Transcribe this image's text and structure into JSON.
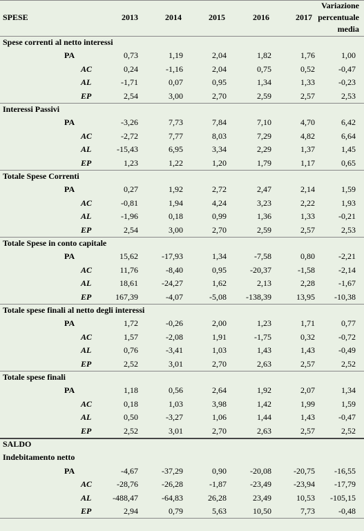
{
  "header": {
    "title": "SPESE",
    "years": [
      "2013",
      "2014",
      "2015",
      "2016",
      "2017"
    ],
    "variation": "Variazione percentuale media"
  },
  "sections": [
    {
      "title": "Spese correnti al netto interessi",
      "rows": [
        {
          "label": "PA",
          "values": [
            "0,73",
            "1,19",
            "2,04",
            "1,82",
            "1,76",
            "1,00"
          ]
        },
        {
          "label": "AC",
          "values": [
            "0,24",
            "-1,16",
            "2,04",
            "0,75",
            "0,52",
            "-0,47"
          ]
        },
        {
          "label": "AL",
          "values": [
            "-1,71",
            "0,07",
            "0,95",
            "1,34",
            "1,33",
            "-0,23"
          ]
        },
        {
          "label": "EP",
          "values": [
            "2,54",
            "3,00",
            "2,70",
            "2,59",
            "2,57",
            "2,53"
          ]
        }
      ]
    },
    {
      "title": "Interessi Passivi",
      "rows": [
        {
          "label": "PA",
          "values": [
            "-3,26",
            "7,73",
            "7,84",
            "7,10",
            "4,70",
            "6,42"
          ]
        },
        {
          "label": "AC",
          "values": [
            "-2,72",
            "7,77",
            "8,03",
            "7,29",
            "4,82",
            "6,64"
          ]
        },
        {
          "label": "AL",
          "values": [
            "-15,43",
            "6,95",
            "3,34",
            "2,29",
            "1,37",
            "1,45"
          ]
        },
        {
          "label": "EP",
          "values": [
            "1,23",
            "1,22",
            "1,20",
            "1,79",
            "1,17",
            "0,65"
          ]
        }
      ]
    },
    {
      "title": "Totale Spese Correnti",
      "rows": [
        {
          "label": "PA",
          "values": [
            "0,27",
            "1,92",
            "2,72",
            "2,47",
            "2,14",
            "1,59"
          ]
        },
        {
          "label": "AC",
          "values": [
            "-0,81",
            "1,94",
            "4,24",
            "3,23",
            "2,22",
            "1,93"
          ]
        },
        {
          "label": "AL",
          "values": [
            "-1,96",
            "0,18",
            "0,99",
            "1,36",
            "1,33",
            "-0,21"
          ]
        },
        {
          "label": "EP",
          "values": [
            "2,54",
            "3,00",
            "2,70",
            "2,59",
            "2,57",
            "2,53"
          ]
        }
      ]
    },
    {
      "title": "Totale Spese in conto capitale",
      "rows": [
        {
          "label": "PA",
          "values": [
            "15,62",
            "-17,93",
            "1,34",
            "-7,58",
            "0,80",
            "-2,21"
          ]
        },
        {
          "label": "AC",
          "values": [
            "11,76",
            "-8,40",
            "0,95",
            "-20,37",
            "-1,58",
            "-2,14"
          ]
        },
        {
          "label": "AL",
          "values": [
            "18,61",
            "-24,27",
            "1,62",
            "2,13",
            "2,28",
            "-1,67"
          ]
        },
        {
          "label": "EP",
          "values": [
            "167,39",
            "-4,07",
            "-5,08",
            "-138,39",
            "13,95",
            "-10,38"
          ]
        }
      ]
    },
    {
      "title": "Totale spese finali al netto degli interessi",
      "rows": [
        {
          "label": "PA",
          "values": [
            "1,72",
            "-0,26",
            "2,00",
            "1,23",
            "1,71",
            "0,77"
          ]
        },
        {
          "label": "AC",
          "values": [
            "1,57",
            "-2,08",
            "1,91",
            "-1,75",
            "0,32",
            "-0,72"
          ]
        },
        {
          "label": "AL",
          "values": [
            "0,76",
            "-3,41",
            "1,03",
            "1,43",
            "1,43",
            "-0,49"
          ]
        },
        {
          "label": "EP",
          "values": [
            "2,52",
            "3,01",
            "2,70",
            "2,63",
            "2,57",
            "2,52"
          ]
        }
      ]
    },
    {
      "title": "Totale spese finali",
      "rows": [
        {
          "label": "PA",
          "values": [
            "1,18",
            "0,56",
            "2,64",
            "1,92",
            "2,07",
            "1,34"
          ]
        },
        {
          "label": "AC",
          "values": [
            "0,18",
            "1,03",
            "3,98",
            "1,42",
            "1,99",
            "1,59"
          ]
        },
        {
          "label": "AL",
          "values": [
            "0,50",
            "-3,27",
            "1,06",
            "1,44",
            "1,43",
            "-0,47"
          ]
        },
        {
          "label": "EP",
          "values": [
            "2,52",
            "3,01",
            "2,70",
            "2,63",
            "2,57",
            "2,52"
          ]
        }
      ]
    }
  ],
  "saldo": {
    "title": "SALDO",
    "section": {
      "title": "Indebitamento netto",
      "rows": [
        {
          "label": "PA",
          "values": [
            "-4,67",
            "-37,29",
            "0,90",
            "-20,08",
            "-20,75",
            "-16,55"
          ]
        },
        {
          "label": "AC",
          "values": [
            "-28,76",
            "-26,28",
            "-1,87",
            "-23,49",
            "-23,94",
            "-17,79"
          ]
        },
        {
          "label": "AL",
          "values": [
            "-488,47",
            "-64,83",
            "26,28",
            "23,49",
            "10,53",
            "-105,15"
          ]
        },
        {
          "label": "EP",
          "values": [
            "2,94",
            "0,79",
            "5,63",
            "10,50",
            "7,73",
            "-0,48"
          ]
        }
      ]
    }
  }
}
